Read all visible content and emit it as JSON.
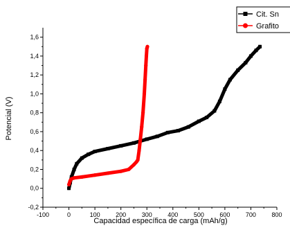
{
  "chart_data": {
    "type": "line",
    "xlabel": "Capacidad específica de carga (mAh/g)",
    "ylabel": "Potencial (V)",
    "xlim": [
      -100,
      800
    ],
    "ylim": [
      -0.2,
      1.7
    ],
    "xticks": [
      "-100",
      "0",
      "100",
      "200",
      "300",
      "400",
      "500",
      "600",
      "700",
      "800"
    ],
    "yticks": [
      "-0,2",
      "0,0",
      "0,2",
      "0,4",
      "0,6",
      "0,8",
      "1,0",
      "1,2",
      "1,4",
      "1,6"
    ],
    "legend_position": "top-right",
    "grid": false,
    "series": [
      {
        "name": "Cit. Sn",
        "color": "#000000",
        "marker": "square",
        "x": [
          0,
          5,
          10,
          20,
          30,
          50,
          75,
          100,
          150,
          200,
          250,
          300,
          340,
          380,
          420,
          460,
          500,
          530,
          560,
          580,
          600,
          620,
          650,
          680,
          700,
          720,
          735
        ],
        "y": [
          0.0,
          0.06,
          0.12,
          0.2,
          0.26,
          0.32,
          0.36,
          0.39,
          0.42,
          0.45,
          0.48,
          0.52,
          0.55,
          0.59,
          0.61,
          0.65,
          0.71,
          0.75,
          0.82,
          0.92,
          1.05,
          1.15,
          1.25,
          1.33,
          1.4,
          1.46,
          1.5
        ]
      },
      {
        "name": "Grafito",
        "color": "#ff0000",
        "marker": "circle",
        "x": [
          0,
          5,
          10,
          20,
          50,
          100,
          150,
          200,
          230,
          250,
          260,
          265,
          270,
          275,
          280,
          285,
          290,
          293,
          296,
          298,
          300,
          302
        ],
        "y": [
          0.04,
          0.08,
          0.1,
          0.11,
          0.12,
          0.14,
          0.16,
          0.18,
          0.2,
          0.25,
          0.28,
          0.3,
          0.4,
          0.52,
          0.65,
          0.8,
          1.0,
          1.15,
          1.3,
          1.4,
          1.48,
          1.5
        ]
      }
    ]
  }
}
